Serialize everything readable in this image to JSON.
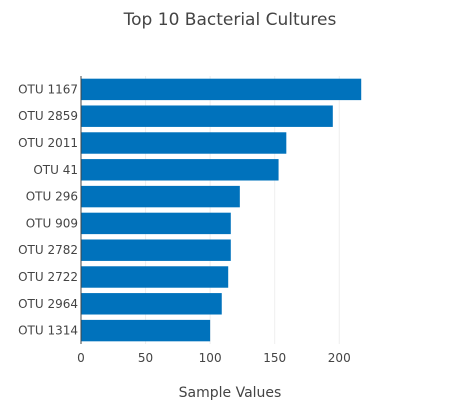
{
  "chart_data": {
    "type": "bar",
    "orientation": "horizontal",
    "title": "Top 10 Bacterial Cultures",
    "xlabel": "Sample Values",
    "ylabel": "",
    "categories": [
      "OTU 1167",
      "OTU 2859",
      "OTU 2011",
      "OTU 41",
      "OTU 296",
      "OTU 909",
      "OTU 2782",
      "OTU 2722",
      "OTU 2964",
      "OTU 1314"
    ],
    "values": [
      217,
      195,
      159,
      153,
      123,
      116,
      116,
      114,
      109,
      100
    ],
    "xlim": [
      0,
      230
    ],
    "xticks": [
      0,
      50,
      100,
      150,
      200
    ],
    "grid": "vertical",
    "bar_color": "#0072bc",
    "legend": "none"
  }
}
